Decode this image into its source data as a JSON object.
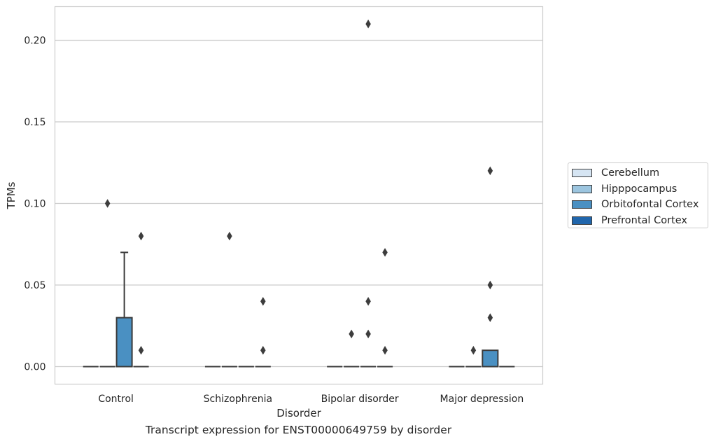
{
  "chart_data": {
    "type": "box",
    "xlabel": "Disorder",
    "ylabel": "TPMs",
    "caption": "Transcript expression for ENST00000649759 by disorder",
    "ylim": [
      -0.01,
      0.22
    ],
    "yticks": [
      "0.00",
      "0.05",
      "0.10",
      "0.15",
      "0.20"
    ],
    "ytick_values": [
      0.0,
      0.05,
      0.1,
      0.15,
      0.2
    ],
    "categories": [
      "Control",
      "Schizophrenia",
      "Bipolar disorder",
      "Major depression"
    ],
    "grid": true,
    "legend_position": "right",
    "series": [
      {
        "name": "Cerebellum",
        "color": "#d6e5f3",
        "boxes": [
          {
            "q1": 0,
            "median": 0,
            "q3": 0,
            "whisker_low": 0,
            "whisker_high": 0,
            "outliers": []
          },
          {
            "q1": 0,
            "median": 0,
            "q3": 0,
            "whisker_low": 0,
            "whisker_high": 0,
            "outliers": []
          },
          {
            "q1": 0,
            "median": 0,
            "q3": 0,
            "whisker_low": 0,
            "whisker_high": 0,
            "outliers": []
          },
          {
            "q1": 0,
            "median": 0,
            "q3": 0,
            "whisker_low": 0,
            "whisker_high": 0,
            "outliers": []
          }
        ]
      },
      {
        "name": "Hipppocampus",
        "color": "#9cc5df",
        "boxes": [
          {
            "q1": 0,
            "median": 0,
            "q3": 0,
            "whisker_low": 0,
            "whisker_high": 0,
            "outliers": [
              0.1
            ]
          },
          {
            "q1": 0,
            "median": 0,
            "q3": 0,
            "whisker_low": 0,
            "whisker_high": 0,
            "outliers": [
              0.08
            ]
          },
          {
            "q1": 0,
            "median": 0,
            "q3": 0,
            "whisker_low": 0,
            "whisker_high": 0,
            "outliers": [
              0.02
            ]
          },
          {
            "q1": 0,
            "median": 0,
            "q3": 0,
            "whisker_low": 0,
            "whisker_high": 0,
            "outliers": [
              0.01
            ]
          }
        ]
      },
      {
        "name": "Orbitofontal Cortex",
        "color": "#4a90c2",
        "boxes": [
          {
            "q1": 0,
            "median": 0,
            "q3": 0.03,
            "whisker_low": 0,
            "whisker_high": 0.07,
            "outliers": []
          },
          {
            "q1": 0,
            "median": 0,
            "q3": 0,
            "whisker_low": 0,
            "whisker_high": 0,
            "outliers": []
          },
          {
            "q1": 0,
            "median": 0,
            "q3": 0,
            "whisker_low": 0,
            "whisker_high": 0,
            "outliers": [
              0.21,
              0.04,
              0.02
            ]
          },
          {
            "q1": 0,
            "median": 0,
            "q3": 0.01,
            "whisker_low": 0,
            "whisker_high": 0.01,
            "outliers": [
              0.12,
              0.05,
              0.03
            ]
          }
        ]
      },
      {
        "name": "Prefrontal Cortex",
        "color": "#2166ac",
        "boxes": [
          {
            "q1": 0,
            "median": 0,
            "q3": 0,
            "whisker_low": 0,
            "whisker_high": 0,
            "outliers": [
              0.08,
              0.01
            ]
          },
          {
            "q1": 0,
            "median": 0,
            "q3": 0,
            "whisker_low": 0,
            "whisker_high": 0,
            "outliers": [
              0.04,
              0.01
            ]
          },
          {
            "q1": 0,
            "median": 0,
            "q3": 0,
            "whisker_low": 0,
            "whisker_high": 0,
            "outliers": [
              0.07,
              0.01
            ]
          },
          {
            "q1": 0,
            "median": 0,
            "q3": 0,
            "whisker_low": 0,
            "whisker_high": 0,
            "outliers": []
          }
        ]
      }
    ]
  }
}
